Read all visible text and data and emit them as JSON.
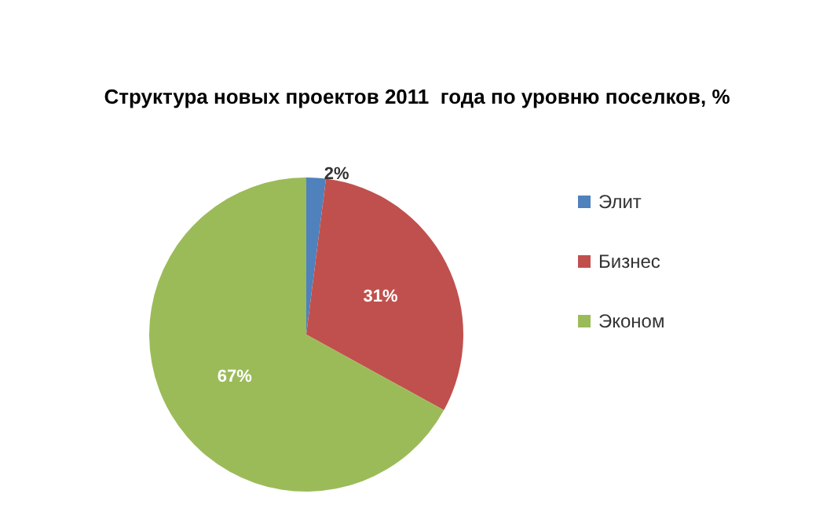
{
  "chart_data": {
    "type": "pie",
    "title": "Структура новых проектов 2011  года по уровню поселков, %",
    "categories": [
      "Элит",
      "Бизнес",
      "Эконом"
    ],
    "values": [
      2,
      31,
      67
    ],
    "colors": [
      "#4f81bd",
      "#c0504d",
      "#9bbb59"
    ],
    "value_labels": [
      "2%",
      "31%",
      "67%"
    ],
    "legend": "right"
  }
}
